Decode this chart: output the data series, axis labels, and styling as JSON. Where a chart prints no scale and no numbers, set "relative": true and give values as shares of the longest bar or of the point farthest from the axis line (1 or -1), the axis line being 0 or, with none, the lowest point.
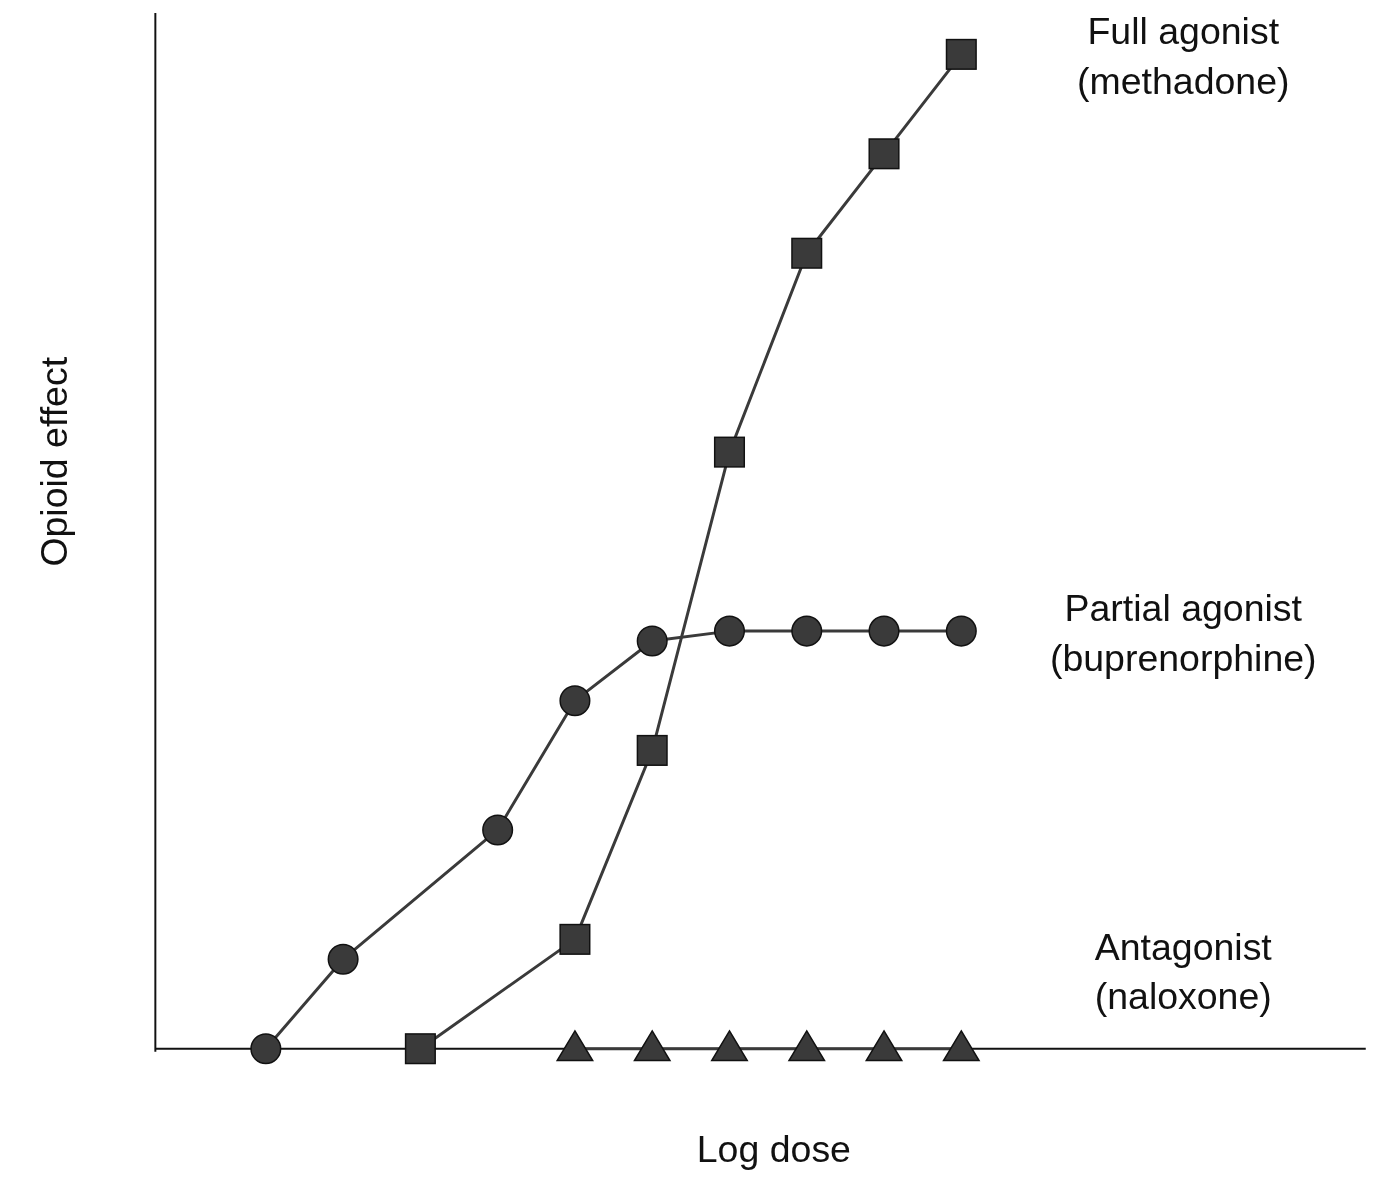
{
  "chart_data": {
    "type": "line",
    "relative": true,
    "xlabel": "Log dose",
    "ylabel": "Opioid effect",
    "legend": "right",
    "line_style": "solid",
    "categories": [
      null,
      null,
      null,
      null,
      null,
      null,
      null,
      null,
      null,
      null
    ],
    "series": [
      {
        "name": "Full agonist (methadone)",
        "color": "#3a3a3a",
        "marker": "square",
        "values": [
          null,
          null,
          0,
          null,
          0.11,
          0.3,
          0.6,
          0.8,
          0.9,
          1
        ]
      },
      {
        "name": "Partial agonist (buprenorphine)",
        "color": "#3a3a3a",
        "marker": "circle",
        "values": [
          0,
          0.09,
          null,
          0.22,
          0.35,
          0.41,
          0.42,
          0.42,
          0.42,
          0.42
        ]
      },
      {
        "name": "Antagonist (naloxone)",
        "color": "#3a3a3a",
        "marker": "triangle",
        "values": [
          null,
          null,
          null,
          null,
          0,
          0,
          0,
          0,
          0,
          0
        ]
      }
    ]
  }
}
